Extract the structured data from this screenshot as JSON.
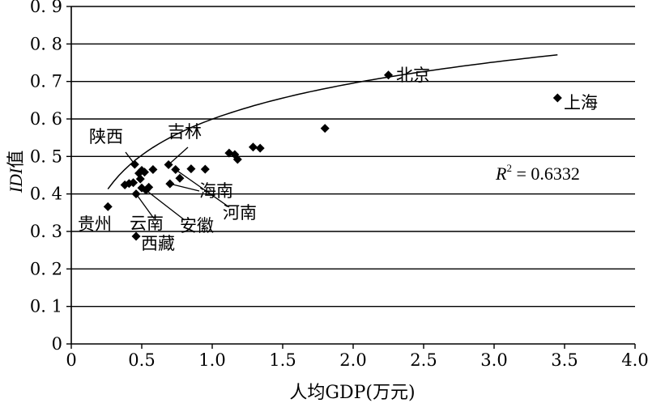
{
  "chart_data": {
    "type": "scatter",
    "xlabel": "人均GDP(万元)",
    "ylabel_italic": "IDI",
    "ylabel_suffix": "值",
    "xlim": [
      0,
      4.0
    ],
    "ylim": [
      0,
      0.9
    ],
    "grid": "horizontal",
    "x_ticks": [
      {
        "value": 0,
        "label": "0"
      },
      {
        "value": 0.5,
        "label": "0.5"
      },
      {
        "value": 1.0,
        "label": "1.0"
      },
      {
        "value": 1.5,
        "label": "1.5"
      },
      {
        "value": 2.0,
        "label": "2.0"
      },
      {
        "value": 2.5,
        "label": "2.5"
      },
      {
        "value": 3.0,
        "label": "3.0"
      },
      {
        "value": 3.5,
        "label": "3.5"
      },
      {
        "value": 4.0,
        "label": "4.0"
      }
    ],
    "y_ticks": [
      {
        "value": 0,
        "label": "0"
      },
      {
        "value": 0.1,
        "label": "0. 1"
      },
      {
        "value": 0.2,
        "label": "0. 2"
      },
      {
        "value": 0.3,
        "label": "0. 3"
      },
      {
        "value": 0.4,
        "label": "0. 4"
      },
      {
        "value": 0.5,
        "label": "0. 5"
      },
      {
        "value": 0.6,
        "label": "0. 6"
      },
      {
        "value": 0.7,
        "label": "0. 7"
      },
      {
        "value": 0.8,
        "label": "0. 8"
      },
      {
        "value": 0.9,
        "label": "0. 9"
      }
    ],
    "points": [
      {
        "x": 0.26,
        "y": 0.366
      },
      {
        "x": 0.38,
        "y": 0.424
      },
      {
        "x": 0.41,
        "y": 0.428
      },
      {
        "x": 0.44,
        "y": 0.43
      },
      {
        "x": 0.45,
        "y": 0.479
      },
      {
        "x": 0.46,
        "y": 0.287
      },
      {
        "x": 0.46,
        "y": 0.4
      },
      {
        "x": 0.48,
        "y": 0.455
      },
      {
        "x": 0.49,
        "y": 0.44
      },
      {
        "x": 0.5,
        "y": 0.463
      },
      {
        "x": 0.5,
        "y": 0.416
      },
      {
        "x": 0.52,
        "y": 0.458
      },
      {
        "x": 0.53,
        "y": 0.41
      },
      {
        "x": 0.55,
        "y": 0.418
      },
      {
        "x": 0.58,
        "y": 0.465
      },
      {
        "x": 0.69,
        "y": 0.478
      },
      {
        "x": 0.7,
        "y": 0.427
      },
      {
        "x": 0.74,
        "y": 0.465
      },
      {
        "x": 0.77,
        "y": 0.442
      },
      {
        "x": 0.85,
        "y": 0.467
      },
      {
        "x": 0.95,
        "y": 0.466
      },
      {
        "x": 1.12,
        "y": 0.509
      },
      {
        "x": 1.16,
        "y": 0.505
      },
      {
        "x": 1.18,
        "y": 0.492
      },
      {
        "x": 1.29,
        "y": 0.525
      },
      {
        "x": 1.34,
        "y": 0.522
      },
      {
        "x": 1.8,
        "y": 0.575
      },
      {
        "x": 2.25,
        "y": 0.717
      },
      {
        "x": 3.45,
        "y": 0.656
      }
    ],
    "trendline": {
      "type": "log",
      "x_range": [
        0.26,
        3.45
      ],
      "y_start": 0.413,
      "y_end": 0.771
    },
    "annotations": [
      {
        "text": "北京",
        "x": 2.25,
        "y": 0.717
      },
      {
        "text": "上海",
        "x": 3.45,
        "y": 0.656
      },
      {
        "text": "陕西",
        "x": 0.45,
        "y": 0.479
      },
      {
        "text": "吉林",
        "x": 0.69,
        "y": 0.478
      },
      {
        "text": "海南",
        "x": 0.7,
        "y": 0.427
      },
      {
        "text": "河南",
        "x": 0.74,
        "y": 0.465
      },
      {
        "text": "贵州",
        "x": 0.26,
        "y": 0.366
      },
      {
        "text": "云南",
        "x": 0.46,
        "y": 0.4
      },
      {
        "text": "安徽",
        "x": 0.53,
        "y": 0.41
      },
      {
        "text": "西藏",
        "x": 0.46,
        "y": 0.287
      }
    ],
    "r2_label": "R",
    "r2_sup": "2",
    "r2_value": " = 0.6332"
  }
}
